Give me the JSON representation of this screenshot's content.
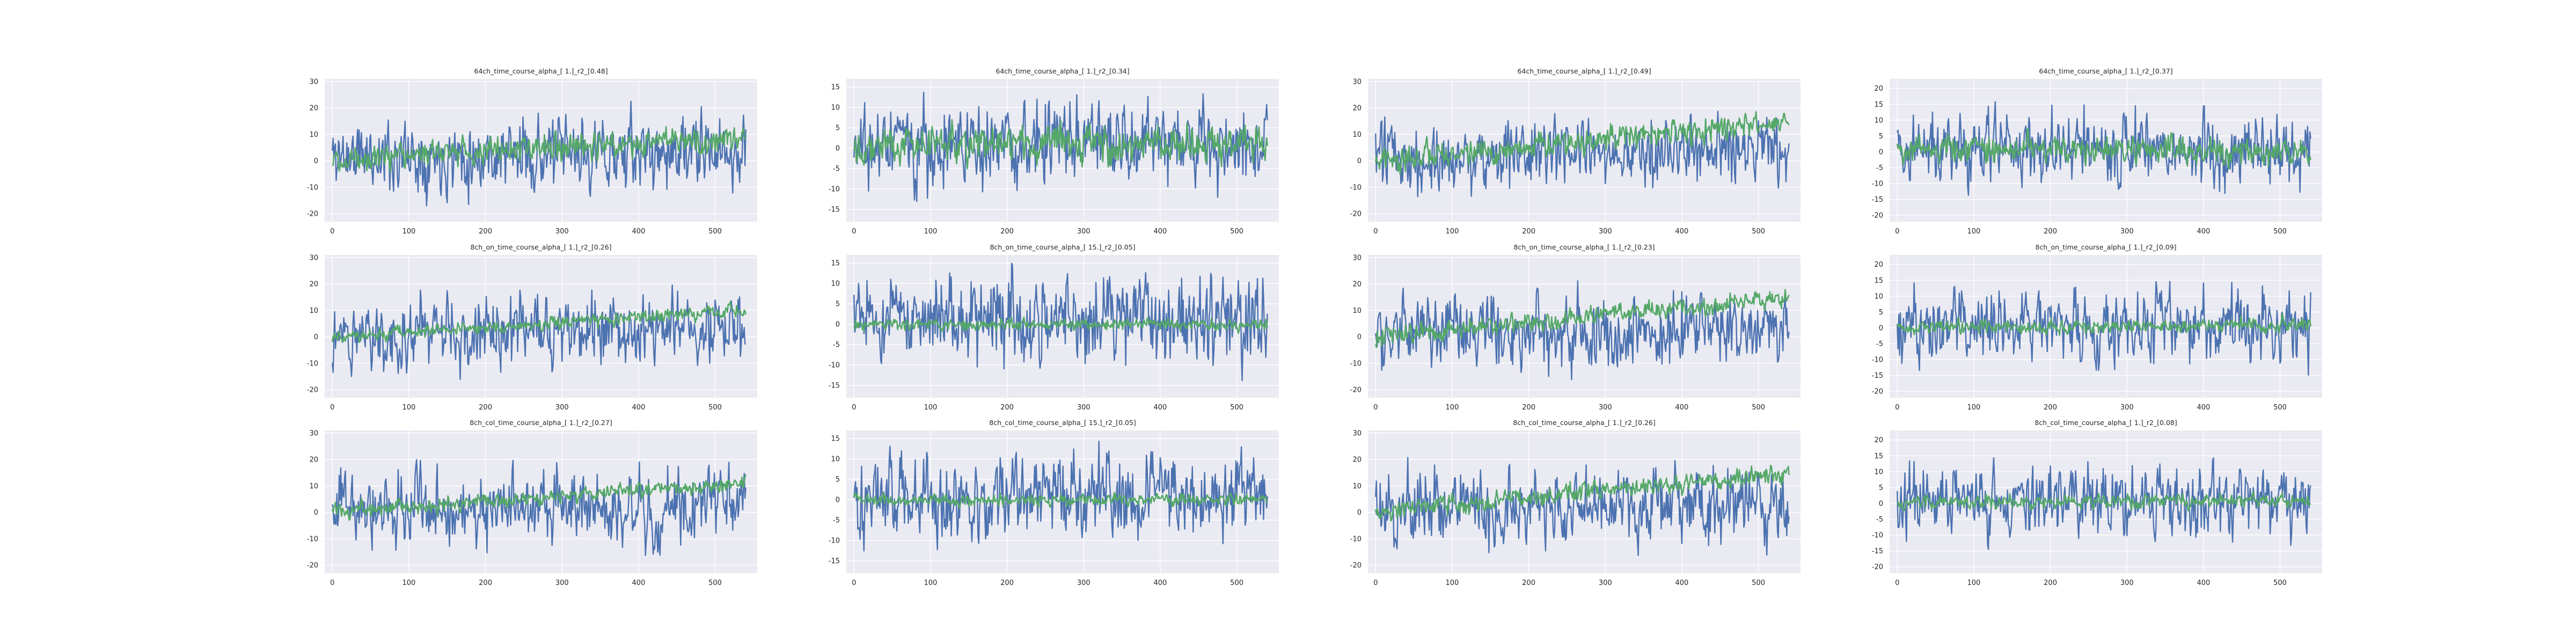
{
  "colors": {
    "background": "#ffffff",
    "axes_face": "#eaeaf2",
    "grid": "#ffffff",
    "series_blue": "#4c72b0",
    "series_green": "#55a868"
  },
  "chart_data": [
    {
      "type": "line",
      "title": "64ch_time_course_alpha_[ 1.]_r2_[0.48]",
      "xlim": [
        -10,
        555
      ],
      "ylim": [
        -23,
        31
      ],
      "xticks": [
        0,
        100,
        200,
        300,
        400,
        500
      ],
      "yticks": [
        -20,
        -10,
        0,
        10,
        20,
        30
      ],
      "grid": true,
      "series": [
        {
          "color": "#4c72b0",
          "n": 541,
          "seed": 11,
          "amp": 9.5,
          "trend": [
            2,
            3
          ],
          "note_range": [
            -21,
            28
          ]
        },
        {
          "color": "#55a868",
          "n": 541,
          "seed": 12,
          "amp": 3.5,
          "trend": [
            1,
            9
          ],
          "note_range": [
            -7,
            27
          ]
        }
      ]
    },
    {
      "type": "line",
      "title": "64ch_time_course_alpha_[ 1.]_r2_[0.34]",
      "xlim": [
        -10,
        555
      ],
      "ylim": [
        -18,
        17
      ],
      "xticks": [
        0,
        100,
        200,
        300,
        400,
        500
      ],
      "yticks": [
        -15,
        -10,
        -5,
        0,
        5,
        10,
        15
      ],
      "grid": true,
      "series": [
        {
          "color": "#4c72b0",
          "n": 541,
          "seed": 21,
          "amp": 7.5,
          "trend": [
            1,
            1
          ],
          "note_range": [
            -16,
            16
          ]
        },
        {
          "color": "#55a868",
          "n": 541,
          "seed": 22,
          "amp": 3,
          "trend": [
            1,
            1
          ],
          "note_range": [
            -8,
            10
          ]
        }
      ]
    },
    {
      "type": "line",
      "title": "64ch_time_course_alpha_[ 1.]_r2_[0.49]",
      "xlim": [
        -10,
        555
      ],
      "ylim": [
        -23,
        31
      ],
      "xticks": [
        0,
        100,
        200,
        300,
        400,
        500
      ],
      "yticks": [
        -20,
        -10,
        0,
        10,
        20,
        30
      ],
      "grid": true,
      "series": [
        {
          "color": "#4c72b0",
          "n": 541,
          "seed": 31,
          "amp": 9.5,
          "trend": [
            1,
            4
          ],
          "note_range": [
            -22,
            29
          ]
        },
        {
          "color": "#55a868",
          "n": 541,
          "seed": 32,
          "amp": 3.5,
          "trend": [
            0,
            15
          ],
          "note_range": [
            -5,
            27
          ]
        }
      ]
    },
    {
      "type": "line",
      "title": "64ch_time_course_alpha_[ 1.]_r2_[0.37]",
      "xlim": [
        -10,
        555
      ],
      "ylim": [
        -22,
        23
      ],
      "xticks": [
        0,
        100,
        200,
        300,
        400,
        500
      ],
      "yticks": [
        -20,
        -15,
        -10,
        -5,
        0,
        5,
        10,
        15,
        20
      ],
      "grid": true,
      "series": [
        {
          "color": "#4c72b0",
          "n": 541,
          "seed": 41,
          "amp": 8,
          "trend": [
            1,
            0
          ],
          "note_range": [
            -20,
            21
          ]
        },
        {
          "color": "#55a868",
          "n": 541,
          "seed": 42,
          "amp": 3,
          "trend": [
            1,
            0
          ],
          "note_range": [
            -8,
            11
          ]
        }
      ]
    },
    {
      "type": "line",
      "title": "8ch_on_time_course_alpha_[ 1.]_r2_[0.26]",
      "xlim": [
        -10,
        555
      ],
      "ylim": [
        -23,
        31
      ],
      "xticks": [
        0,
        100,
        200,
        300,
        400,
        500
      ],
      "yticks": [
        -20,
        -10,
        0,
        10,
        20,
        30
      ],
      "grid": true,
      "series": [
        {
          "color": "#4c72b0",
          "n": 541,
          "seed": 51,
          "amp": 9.5,
          "trend": [
            1,
            3
          ],
          "note_range": [
            -21,
            28
          ]
        },
        {
          "color": "#55a868",
          "n": 541,
          "seed": 52,
          "amp": 1.8,
          "trend": [
            0,
            10
          ],
          "note_range": [
            -3,
            14
          ]
        }
      ]
    },
    {
      "type": "line",
      "title": "8ch_on_time_course_alpha_[ 15.]_r2_[0.05]",
      "xlim": [
        -10,
        555
      ],
      "ylim": [
        -18,
        17
      ],
      "xticks": [
        0,
        100,
        200,
        300,
        400,
        500
      ],
      "yticks": [
        -15,
        -10,
        -5,
        0,
        5,
        10,
        15
      ],
      "grid": true,
      "series": [
        {
          "color": "#4c72b0",
          "n": 541,
          "seed": 61,
          "amp": 7.5,
          "trend": [
            1,
            1
          ],
          "note_range": [
            -16,
            16
          ]
        },
        {
          "color": "#55a868",
          "n": 541,
          "seed": 62,
          "amp": 1,
          "trend": [
            0,
            0
          ],
          "note_range": [
            -3,
            3
          ]
        }
      ]
    },
    {
      "type": "line",
      "title": "8ch_on_time_course_alpha_[ 1.]_r2_[0.23]",
      "xlim": [
        -10,
        555
      ],
      "ylim": [
        -23,
        31
      ],
      "xticks": [
        0,
        100,
        200,
        300,
        400,
        500
      ],
      "yticks": [
        -20,
        -10,
        0,
        10,
        20,
        30
      ],
      "grid": true,
      "series": [
        {
          "color": "#4c72b0",
          "n": 541,
          "seed": 71,
          "amp": 9.5,
          "trend": [
            1,
            4
          ],
          "note_range": [
            -22,
            29
          ]
        },
        {
          "color": "#55a868",
          "n": 541,
          "seed": 72,
          "amp": 2.5,
          "trend": [
            0,
            15
          ],
          "note_range": [
            -4,
            19
          ]
        }
      ]
    },
    {
      "type": "line",
      "title": "8ch_on_time_course_alpha_[ 1.]_r2_[0.09]",
      "xlim": [
        -10,
        555
      ],
      "ylim": [
        -22,
        23
      ],
      "xticks": [
        0,
        100,
        200,
        300,
        400,
        500
      ],
      "yticks": [
        -20,
        -15,
        -10,
        -5,
        0,
        5,
        10,
        15,
        20
      ],
      "grid": true,
      "series": [
        {
          "color": "#4c72b0",
          "n": 541,
          "seed": 81,
          "amp": 8,
          "trend": [
            1,
            0
          ],
          "note_range": [
            -20,
            21
          ]
        },
        {
          "color": "#55a868",
          "n": 541,
          "seed": 82,
          "amp": 1.5,
          "trend": [
            0,
            1
          ],
          "note_range": [
            -4,
            5
          ]
        }
      ]
    },
    {
      "type": "line",
      "title": "8ch_col_time_course_alpha_[ 1.]_r2_[0.27]",
      "xlim": [
        -10,
        555
      ],
      "ylim": [
        -23,
        31
      ],
      "xticks": [
        0,
        100,
        200,
        300,
        400,
        500
      ],
      "yticks": [
        -20,
        -10,
        0,
        10,
        20,
        30
      ],
      "grid": true,
      "series": [
        {
          "color": "#4c72b0",
          "n": 541,
          "seed": 91,
          "amp": 9.5,
          "trend": [
            1,
            3
          ],
          "note_range": [
            -21,
            28
          ]
        },
        {
          "color": "#55a868",
          "n": 541,
          "seed": 92,
          "amp": 2,
          "trend": [
            0,
            11
          ],
          "note_range": [
            -3,
            15
          ]
        }
      ]
    },
    {
      "type": "line",
      "title": "8ch_col_time_course_alpha_[ 15.]_r2_[0.05]",
      "xlim": [
        -10,
        555
      ],
      "ylim": [
        -18,
        17
      ],
      "xticks": [
        0,
        100,
        200,
        300,
        400,
        500
      ],
      "yticks": [
        -15,
        -10,
        -5,
        0,
        5,
        10,
        15
      ],
      "grid": true,
      "series": [
        {
          "color": "#4c72b0",
          "n": 541,
          "seed": 101,
          "amp": 7.5,
          "trend": [
            1,
            1
          ],
          "note_range": [
            -16,
            16
          ]
        },
        {
          "color": "#55a868",
          "n": 541,
          "seed": 102,
          "amp": 1,
          "trend": [
            0,
            0
          ],
          "note_range": [
            -3,
            3
          ]
        }
      ]
    },
    {
      "type": "line",
      "title": "8ch_col_time_course_alpha_[ 1.]_r2_[0.26]",
      "xlim": [
        -10,
        555
      ],
      "ylim": [
        -23,
        31
      ],
      "xticks": [
        0,
        100,
        200,
        300,
        400,
        500
      ],
      "yticks": [
        -20,
        -10,
        0,
        10,
        20,
        30
      ],
      "grid": true,
      "series": [
        {
          "color": "#4c72b0",
          "n": 541,
          "seed": 111,
          "amp": 9.5,
          "trend": [
            1,
            4
          ],
          "note_range": [
            -22,
            29
          ]
        },
        {
          "color": "#55a868",
          "n": 541,
          "seed": 112,
          "amp": 2.5,
          "trend": [
            0,
            15
          ],
          "note_range": [
            -4,
            19
          ]
        }
      ]
    },
    {
      "type": "line",
      "title": "8ch_col_time_course_alpha_[ 1.]_r2_[0.08]",
      "xlim": [
        -10,
        555
      ],
      "ylim": [
        -22,
        23
      ],
      "xticks": [
        0,
        100,
        200,
        300,
        400,
        500
      ],
      "yticks": [
        -20,
        -15,
        -10,
        -5,
        0,
        5,
        10,
        15,
        20
      ],
      "grid": true,
      "series": [
        {
          "color": "#4c72b0",
          "n": 541,
          "seed": 121,
          "amp": 8,
          "trend": [
            1,
            0
          ],
          "note_range": [
            -20,
            21
          ]
        },
        {
          "color": "#55a868",
          "n": 541,
          "seed": 122,
          "amp": 1.5,
          "trend": [
            0,
            1
          ],
          "note_range": [
            -4,
            5
          ]
        }
      ]
    }
  ]
}
